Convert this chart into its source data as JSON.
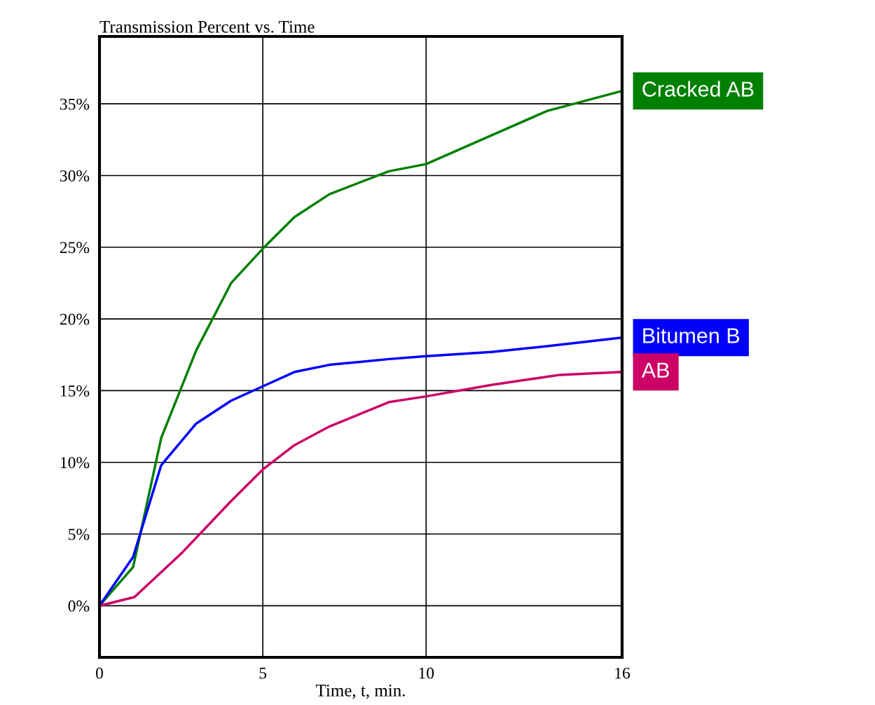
{
  "chart_data": {
    "type": "line",
    "title": "Transmission Percent vs. Time",
    "xlabel": "Time, t, min.",
    "xlim": [
      0,
      16
    ],
    "xticks": [
      0,
      5,
      10,
      16
    ],
    "ylim": [
      -3.6,
      39.7
    ],
    "yticks": [
      {
        "value": 0,
        "label": "0%"
      },
      {
        "value": 5,
        "label": "5%"
      },
      {
        "value": 10,
        "label": "10%"
      },
      {
        "value": 15,
        "label": "15%"
      },
      {
        "value": 20,
        "label": "20%"
      },
      {
        "value": 25,
        "label": "25%"
      },
      {
        "value": 30,
        "label": "30%"
      },
      {
        "value": 35,
        "label": "35%"
      }
    ],
    "grid": true,
    "legend": false,
    "marker": "none",
    "line_style": "solid",
    "series": [
      {
        "name": "Cracked AB",
        "color": "#008000",
        "x": [
          0,
          1.03,
          1.89,
          2.96,
          4.03,
          5,
          5.97,
          7.04,
          8.86,
          10,
          11.5,
          13.7,
          16
        ],
        "values": [
          0,
          2.7,
          11.7,
          17.8,
          22.5,
          24.9,
          27.1,
          28.7,
          30.3,
          30.8,
          32.3,
          34.5,
          35.9
        ]
      },
      {
        "name": "Bitumen B",
        "color": "#0000ff",
        "x": [
          0,
          1.03,
          1.89,
          2.96,
          4.03,
          5,
          5.97,
          7.04,
          8.86,
          10,
          12,
          13.7,
          16
        ],
        "values": [
          0,
          3.4,
          9.8,
          12.7,
          14.3,
          15.3,
          16.3,
          16.8,
          17.2,
          17.4,
          17.7,
          18.1,
          18.7
        ]
      },
      {
        "name": "AB",
        "color": "#cc0066",
        "x": [
          0,
          1.07,
          2.53,
          4.03,
          5,
          5.97,
          7.04,
          8.86,
          10,
          12,
          14.1,
          16
        ],
        "values": [
          0,
          0.6,
          3.7,
          7.3,
          9.5,
          11.2,
          12.5,
          14.2,
          14.6,
          15.4,
          16.1,
          16.3
        ]
      }
    ]
  }
}
